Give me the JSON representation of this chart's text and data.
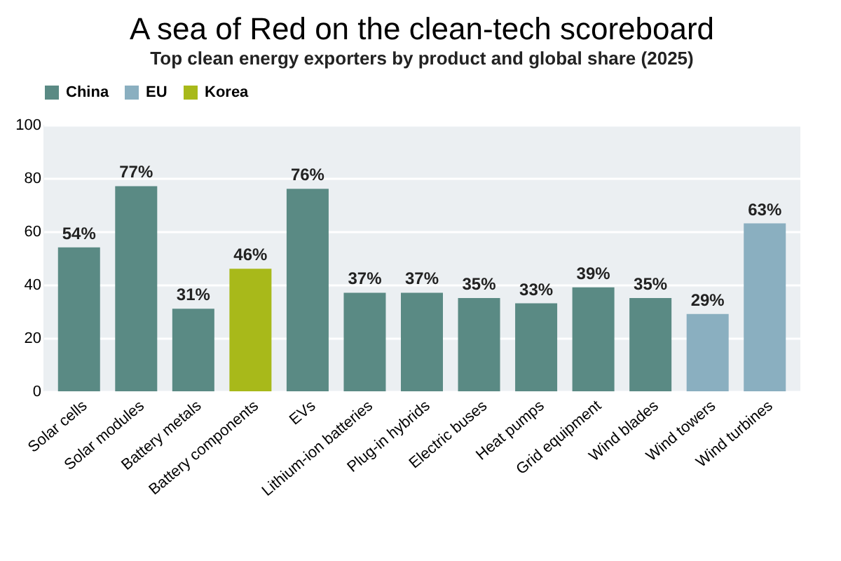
{
  "chart_data": {
    "type": "bar",
    "title": "A sea of Red on the clean-tech scoreboard",
    "subtitle": "Top clean energy exporters by product and global share (2025)",
    "categories": [
      "Solar cells",
      "Solar modules",
      "Battery metals",
      "Battery components",
      "EVs",
      "Lithium-ion batteries",
      "Plug-in hybrids",
      "Electric buses",
      "Heat pumps",
      "Grid equipment",
      "Wind blades",
      "Wind towers",
      "Wind turbines"
    ],
    "series": [
      {
        "name": "China",
        "color": "#5a8a84",
        "values": [
          54,
          77,
          31,
          null,
          76,
          37,
          37,
          35,
          33,
          39,
          35,
          null,
          null
        ]
      },
      {
        "name": "EU",
        "color": "#8aafc0",
        "values": [
          null,
          null,
          null,
          null,
          null,
          null,
          null,
          null,
          null,
          null,
          null,
          29,
          63
        ]
      },
      {
        "name": "Korea",
        "color": "#a8b91a",
        "values": [
          null,
          null,
          null,
          46,
          null,
          null,
          null,
          null,
          null,
          null,
          null,
          null,
          null
        ]
      }
    ],
    "value_labels": [
      "54%",
      "77%",
      "31%",
      "46%",
      "76%",
      "37%",
      "37%",
      "35%",
      "33%",
      "39%",
      "35%",
      "29%",
      "63%"
    ],
    "ylim": [
      0,
      100
    ],
    "yticks": [
      0,
      20,
      40,
      60,
      80,
      100
    ],
    "grid": "y",
    "legend": "top"
  }
}
